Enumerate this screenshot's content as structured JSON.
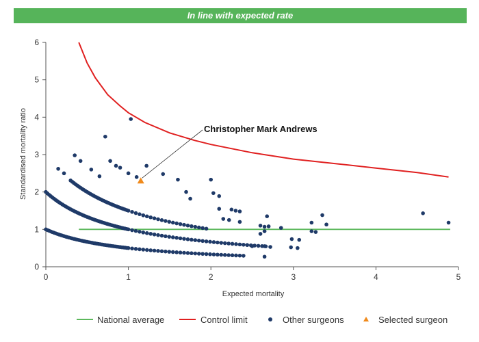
{
  "banner": {
    "text": "In line with expected rate",
    "color": "#56b45a"
  },
  "chart_data": {
    "type": "scatter",
    "xlabel": "Expected mortality",
    "ylabel": "Standardised mortality ratio",
    "xlim": [
      0,
      5
    ],
    "ylim": [
      0,
      6
    ],
    "xticks": [
      0,
      1,
      2,
      3,
      4,
      5
    ],
    "yticks": [
      0,
      1,
      2,
      3,
      4,
      5,
      6
    ],
    "grid": false,
    "legend_position": "bottom",
    "annotation": {
      "text": "Christopher Mark Andrews",
      "target": "Selected surgeon"
    },
    "national_average": {
      "name": "National average",
      "color": "#5cb85c",
      "y": 1,
      "x": [
        0.4,
        4.9
      ]
    },
    "control_limit": {
      "name": "Control limit",
      "color": "#e02020",
      "points": [
        [
          0.4,
          6.0
        ],
        [
          0.5,
          5.45
        ],
        [
          0.6,
          5.05
        ],
        [
          0.75,
          4.6
        ],
        [
          0.9,
          4.3
        ],
        [
          1.0,
          4.12
        ],
        [
          1.2,
          3.86
        ],
        [
          1.5,
          3.58
        ],
        [
          1.8,
          3.38
        ],
        [
          2.0,
          3.27
        ],
        [
          2.5,
          3.05
        ],
        [
          3.0,
          2.88
        ],
        [
          3.5,
          2.76
        ],
        [
          4.0,
          2.64
        ],
        [
          4.5,
          2.52
        ],
        [
          4.88,
          2.4
        ]
      ]
    },
    "series": [
      {
        "name": "Other surgeons",
        "marker": "circle",
        "color": "#1f3a68",
        "curves": [
          1,
          2,
          3
        ],
        "curve_x": {
          "1": [
            0.0,
            2.4
          ],
          "2": [
            0.0,
            2.7
          ],
          "3": [
            0.3,
            1.95
          ]
        },
        "points": [
          [
            0.15,
            2.62
          ],
          [
            0.22,
            2.5
          ],
          [
            0.35,
            2.98
          ],
          [
            0.42,
            2.83
          ],
          [
            0.55,
            2.6
          ],
          [
            0.65,
            2.42
          ],
          [
            0.72,
            3.48
          ],
          [
            0.78,
            2.83
          ],
          [
            0.85,
            2.7
          ],
          [
            0.9,
            2.65
          ],
          [
            1.0,
            2.5
          ],
          [
            1.03,
            3.95
          ],
          [
            1.1,
            2.4
          ],
          [
            1.22,
            2.7
          ],
          [
            1.42,
            2.48
          ],
          [
            1.6,
            2.33
          ],
          [
            1.7,
            2.0
          ],
          [
            1.75,
            1.82
          ],
          [
            2.0,
            2.33
          ],
          [
            2.03,
            1.97
          ],
          [
            2.1,
            1.89
          ],
          [
            2.1,
            1.55
          ],
          [
            2.15,
            1.28
          ],
          [
            2.22,
            1.25
          ],
          [
            2.25,
            1.53
          ],
          [
            2.3,
            1.5
          ],
          [
            2.35,
            1.48
          ],
          [
            2.35,
            1.2
          ],
          [
            2.6,
            1.1
          ],
          [
            2.65,
            1.07
          ],
          [
            2.68,
            1.35
          ],
          [
            2.7,
            1.08
          ],
          [
            2.85,
            1.04
          ],
          [
            2.6,
            0.88
          ],
          [
            2.65,
            0.95
          ],
          [
            2.5,
            0.55
          ],
          [
            2.65,
            0.55
          ],
          [
            2.72,
            0.53
          ],
          [
            2.65,
            0.27
          ],
          [
            2.98,
            0.74
          ],
          [
            3.07,
            0.72
          ],
          [
            2.97,
            0.52
          ],
          [
            3.05,
            0.5
          ],
          [
            3.22,
            1.18
          ],
          [
            3.22,
            0.95
          ],
          [
            3.27,
            0.93
          ],
          [
            3.35,
            1.38
          ],
          [
            3.4,
            1.13
          ],
          [
            4.57,
            1.43
          ],
          [
            4.88,
            1.18
          ]
        ]
      },
      {
        "name": "Selected surgeon",
        "marker": "triangle",
        "color": "#f08a1c",
        "points": [
          [
            1.15,
            2.3
          ]
        ]
      }
    ]
  }
}
